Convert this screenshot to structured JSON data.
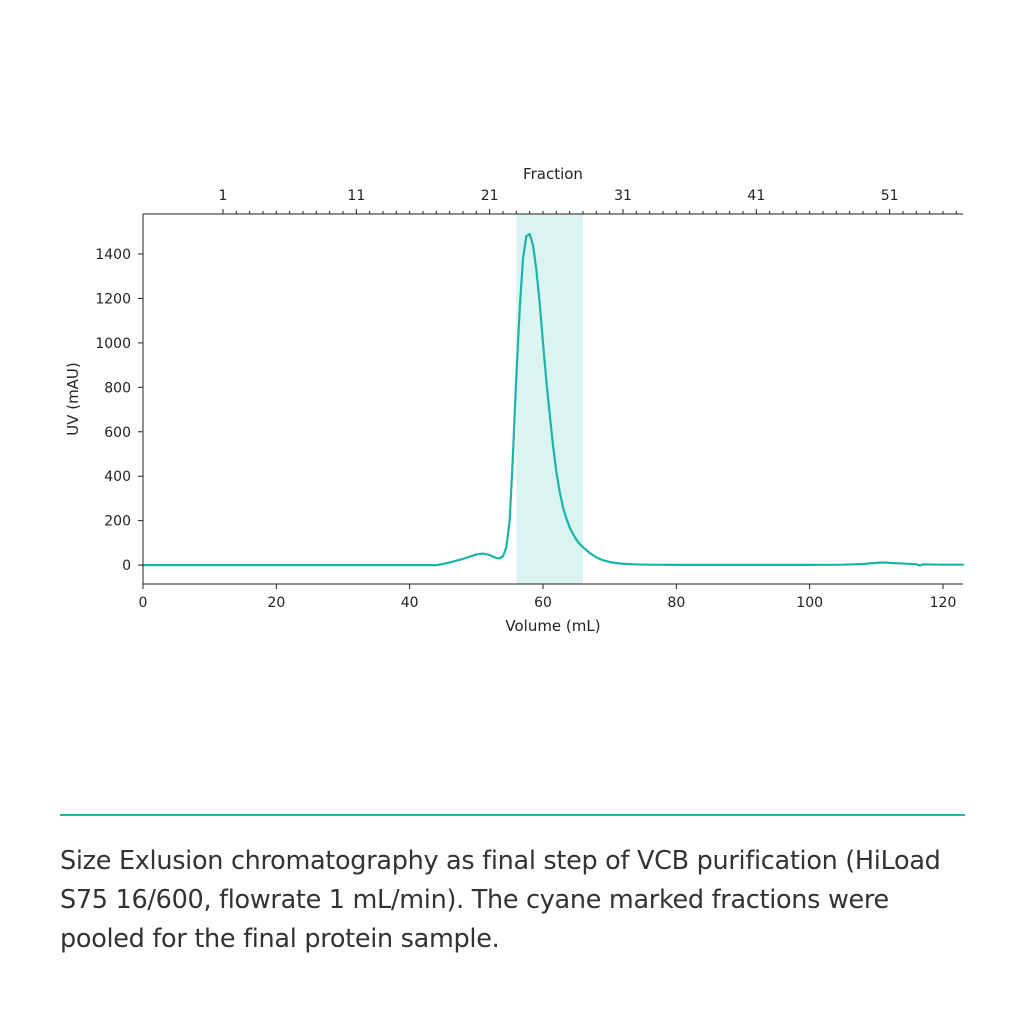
{
  "chart_data": {
    "type": "line",
    "xlabel": "Volume (mL)",
    "ylabel": "UV (mAU)",
    "secondary_xlabel": "Fraction",
    "xlim": [
      0,
      123
    ],
    "ylim": [
      -85,
      1580
    ],
    "x_ticks": [
      0,
      20,
      40,
      60,
      80,
      100,
      120
    ],
    "y_ticks": [
      0,
      200,
      400,
      600,
      800,
      1000,
      1200,
      1400
    ],
    "fraction_axis": {
      "volume_at_fraction_1": 12,
      "ml_per_fraction": 2,
      "labeled_fractions": [
        1,
        11,
        21,
        31,
        41,
        51
      ],
      "first_fraction": 1,
      "last_fraction": 56
    },
    "pooled_region": {
      "x_start": 56,
      "x_end": 66,
      "color": "#d9f4f1"
    },
    "series": [
      {
        "color": "#1ab5a8",
        "x": [
          0,
          10,
          20,
          30,
          40,
          44,
          45,
          46,
          47,
          48,
          49,
          50,
          51,
          52,
          53,
          53.5,
          54,
          54.5,
          55,
          55.5,
          56,
          56.5,
          57,
          57.5,
          58,
          58.5,
          59,
          59.5,
          60,
          60.5,
          61,
          61.5,
          62,
          62.5,
          63,
          63.5,
          64,
          64.5,
          65,
          65.5,
          66,
          67,
          68,
          69,
          70,
          71,
          72,
          74,
          76,
          80,
          90,
          100,
          105,
          108,
          110,
          111,
          112,
          114,
          116,
          116.5,
          117,
          118,
          120,
          123
        ],
        "y": [
          0,
          0,
          0,
          0,
          0,
          0,
          5,
          12,
          20,
          28,
          38,
          48,
          52,
          45,
          32,
          30,
          40,
          80,
          200,
          500,
          850,
          1150,
          1380,
          1480,
          1490,
          1440,
          1330,
          1180,
          1000,
          830,
          680,
          540,
          420,
          330,
          260,
          210,
          170,
          140,
          115,
          95,
          80,
          55,
          35,
          22,
          14,
          9,
          6,
          3,
          2,
          1,
          1,
          1,
          2,
          5,
          10,
          12,
          10,
          7,
          4,
          -2,
          4,
          3,
          2,
          2
        ]
      }
    ]
  },
  "caption": "Size Exlusion chromatography as final step of VCB purification (HiLoad S75 16/600, flowrate 1 mL/min). The cyane marked fractions were pooled for the final protein sample.",
  "colors": {
    "accent": "#1ab5a8",
    "pooled_fill": "#d9f4f1",
    "divider": "#1ab5a8"
  }
}
